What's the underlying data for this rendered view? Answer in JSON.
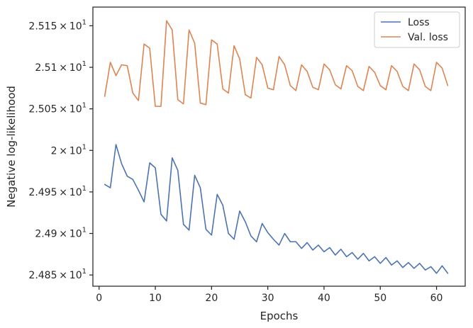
{
  "chart_data": {
    "type": "line",
    "xlabel": "Epochs",
    "ylabel": "Negative log-likelihood",
    "xlim": [
      -1.1,
      65.1
    ],
    "ylim": [
      24.8365,
      25.1725
    ],
    "grid": false,
    "legend_placement": "top-right",
    "x_ticks": [
      0,
      10,
      20,
      30,
      40,
      50,
      60
    ],
    "x_tick_labels": [
      "0",
      "10",
      "20",
      "30",
      "40",
      "50",
      "60"
    ],
    "y_ticks": [
      {
        "value": 24.85,
        "mantissa": "2.485",
        "times": "×",
        "base": "10",
        "exp": "1"
      },
      {
        "value": 24.9,
        "mantissa": "2.49",
        "times": "×",
        "base": "10",
        "exp": "1"
      },
      {
        "value": 24.95,
        "mantissa": "2.495",
        "times": "×",
        "base": "10",
        "exp": "1"
      },
      {
        "value": 25.0,
        "mantissa": "2",
        "times": "×",
        "base": "10",
        "exp": "1"
      },
      {
        "value": 25.05,
        "mantissa": "2.505",
        "times": "×",
        "base": "10",
        "exp": "1"
      },
      {
        "value": 25.1,
        "mantissa": "2.51",
        "times": "×",
        "base": "10",
        "exp": "1"
      },
      {
        "value": 25.15,
        "mantissa": "2.515",
        "times": "×",
        "base": "10",
        "exp": "1"
      }
    ],
    "x": [
      1,
      2,
      3,
      4,
      5,
      6,
      7,
      8,
      9,
      10,
      11,
      12,
      13,
      14,
      15,
      16,
      17,
      18,
      19,
      20,
      21,
      22,
      23,
      24,
      25,
      26,
      27,
      28,
      29,
      30,
      31,
      32,
      33,
      34,
      35,
      36,
      37,
      38,
      39,
      40,
      41,
      42,
      43,
      44,
      45,
      46,
      47,
      48,
      49,
      50,
      51,
      52,
      53,
      54,
      55,
      56,
      57,
      58,
      59,
      60,
      61,
      62
    ],
    "series": [
      {
        "name": "Loss",
        "color": "#4c72b0",
        "values": [
          24.959,
          24.955,
          25.007,
          24.984,
          24.969,
          24.965,
          24.952,
          24.938,
          24.985,
          24.979,
          24.923,
          24.915,
          24.991,
          24.976,
          24.911,
          24.904,
          24.97,
          24.955,
          24.905,
          24.898,
          24.947,
          24.934,
          24.9,
          24.893,
          24.927,
          24.914,
          24.897,
          24.89,
          24.912,
          24.901,
          24.893,
          24.886,
          24.9,
          24.89,
          24.89,
          24.882,
          24.889,
          24.88,
          24.886,
          24.878,
          24.883,
          24.874,
          24.881,
          24.872,
          24.877,
          24.869,
          24.876,
          24.867,
          24.872,
          24.864,
          24.871,
          24.862,
          24.867,
          24.859,
          24.865,
          24.858,
          24.864,
          24.856,
          24.86,
          24.852,
          24.861,
          24.852
        ]
      },
      {
        "name": "Val. loss",
        "color": "#dd8452",
        "values": [
          25.065,
          25.106,
          25.09,
          25.103,
          25.102,
          25.069,
          25.06,
          25.128,
          25.123,
          25.053,
          25.053,
          25.156,
          25.145,
          25.061,
          25.056,
          25.145,
          25.129,
          25.057,
          25.055,
          25.133,
          25.128,
          25.074,
          25.069,
          25.126,
          25.11,
          25.067,
          25.063,
          25.112,
          25.103,
          25.075,
          25.073,
          25.113,
          25.103,
          25.078,
          25.072,
          25.103,
          25.095,
          25.076,
          25.073,
          25.104,
          25.097,
          25.079,
          25.074,
          25.102,
          25.096,
          25.077,
          25.072,
          25.101,
          25.094,
          25.078,
          25.073,
          25.102,
          25.095,
          25.077,
          25.072,
          25.104,
          25.097,
          25.077,
          25.072,
          25.106,
          25.099,
          25.078
        ]
      }
    ]
  }
}
